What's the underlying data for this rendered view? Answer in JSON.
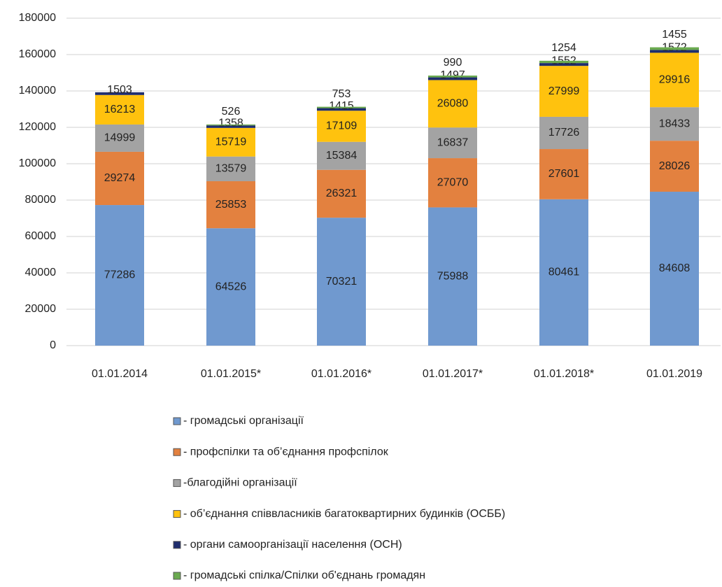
{
  "chart_data": {
    "type": "stacked_bar",
    "categories": [
      "01.01.2014",
      "01.01.2015*",
      "01.01.2016*",
      "01.01.2017*",
      "01.01.2018*",
      "01.01.2019"
    ],
    "series": [
      {
        "name": "- громадські організації",
        "color": "#7099cf",
        "values": [
          77286,
          64526,
          70321,
          75988,
          80461,
          84608
        ]
      },
      {
        "name": "- профспілки та об’єднання профспілок",
        "color": "#e3813f",
        "values": [
          29274,
          25853,
          26321,
          27070,
          27601,
          28026
        ]
      },
      {
        "name": "-благодійні організації",
        "color": "#a3a3a3",
        "values": [
          14999,
          13579,
          15384,
          16837,
          17726,
          18433
        ]
      },
      {
        "name": "- об’єднання співвласників багатоквартирних будинків (ОСББ)",
        "color": "#ffc20e",
        "values": [
          16213,
          15719,
          17109,
          26080,
          27999,
          29916
        ]
      },
      {
        "name": "- органи самоорганізації населення (ОСН)",
        "color": "#1f2d6e",
        "values": [
          1503,
          1358,
          1415,
          1497,
          1552,
          1572
        ]
      },
      {
        "name": "- громадські спілка/Спілки об'єднань громадян",
        "color": "#6aaa4f",
        "values": [
          null,
          526,
          753,
          990,
          1254,
          1455
        ]
      }
    ],
    "ylim": [
      0,
      180000
    ],
    "yticks": [
      0,
      20000,
      40000,
      60000,
      80000,
      100000,
      120000,
      140000,
      160000,
      180000
    ],
    "grid": true
  }
}
